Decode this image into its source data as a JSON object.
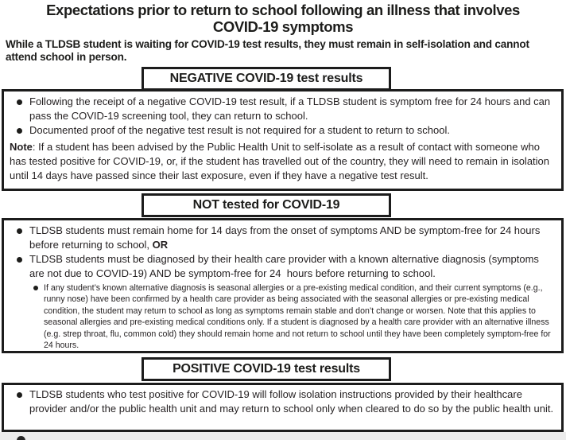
{
  "title": {
    "line1": "Expectations prior to return to school following an illness that involves",
    "line2": "COVID-19 symptoms"
  },
  "intro": "While a TLDSB student is waiting for COVID-19 test results, they must remain in self-isolation and cannot attend school in person.",
  "sections": {
    "negative": {
      "header": "NEGATIVE COVID-19 test results",
      "bullets": [
        "Following the receipt of a negative COVID-19 test result, if a TLDSB student is symptom free for 24 hours and can pass the COVID-19 screening tool, they can return to school.",
        "Documented proof of the negative test result is not required for a student to return to school."
      ],
      "note_label": "Note",
      "note_text": ": If a student has been advised by the Public Health Unit to self-isolate as a result of contact with someone who has tested positive for COVID-19, or, if the student has travelled out of the country, they will need to remain in isolation until 14 days have passed since their last exposure, even if they have a negative test result."
    },
    "not_tested": {
      "header": "NOT tested for COVID-19",
      "bullet1_text": "TLDSB students must remain home for 14 days from the onset of symptoms AND be symptom-free for 24 hours before returning to school, ",
      "bullet1_bold": "OR",
      "bullet2": "TLDSB students must be diagnosed by their health care provider with a known alternative diagnosis (symptoms are not due to COVID-19) AND be symptom-free for 24  hours before returning to school.",
      "sub_bullet": "If any student’s known alternative diagnosis is seasonal allergies or a pre-existing medical condition, and their current symptoms (e.g., runny nose) have been confirmed by a health care provider as being associated with the seasonal allergies or pre-existing medical condition, the student may return to school as long as symptoms remain stable and don’t change or worsen. Note that this applies to seasonal allergies and pre-existing medical conditions only. If a student is diagnosed by a health care provider with an alternative illness (e.g. strep throat, flu, common cold) they should remain home and not return to school until they have been completely symptom-free for 24 hours."
    },
    "positive": {
      "header": "POSITIVE COVID-19 test results",
      "bullets": [
        "TLDSB students who test positive for COVID-19 will follow isolation instructions provided by their healthcare provider and/or the public health unit and may return to school only when cleared to do so by the public health unit."
      ]
    }
  },
  "colors": {
    "text": "#231f20",
    "border": "#1c1c1c",
    "background": "#ffffff",
    "bottom_strip": "#ececec"
  }
}
